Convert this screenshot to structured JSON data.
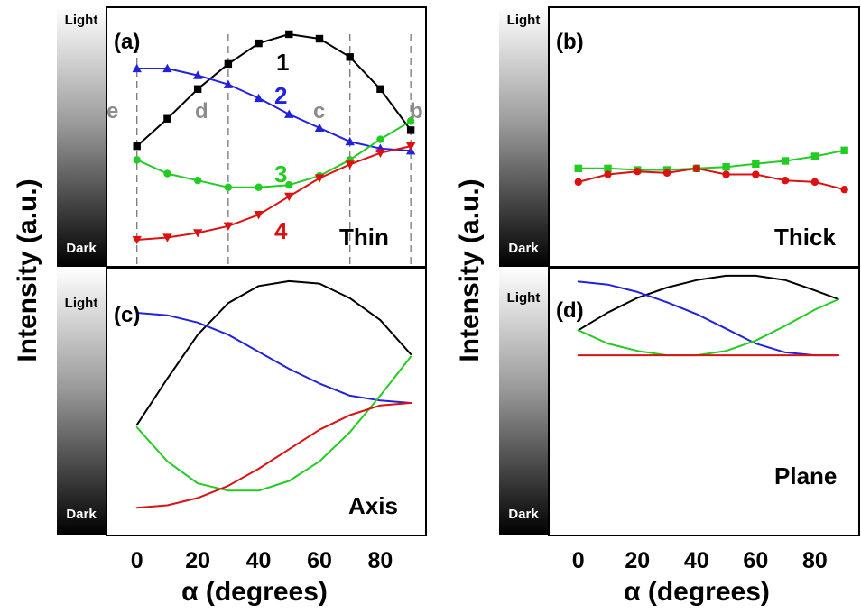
{
  "figure": {
    "y_axis_label": "Intensity (a.u.)",
    "x_axis_label": "α (degrees)",
    "scale_light": "Light",
    "scale_dark": "Dark",
    "x_ticks": [
      "0",
      "20",
      "40",
      "60",
      "80"
    ]
  },
  "colors": {
    "curve1": "#000000",
    "curve2": "#2222dd",
    "curve3": "#22cc22",
    "curve4": "#dd1111",
    "guide": "#777777",
    "guide_label": "#8c8c8c"
  },
  "chart_data": [
    {
      "panel_label": "(a)",
      "name": "Thin",
      "type": "line",
      "markers": true,
      "xlim": [
        -10,
        95
      ],
      "ylim": [
        0,
        1
      ],
      "vlines": [
        {
          "x": 0,
          "label": "e"
        },
        {
          "x": 30,
          "label": "d"
        },
        {
          "x": 70,
          "label": "c"
        },
        {
          "x": 90,
          "label": "b"
        }
      ],
      "series": [
        {
          "name": "1",
          "color": "#000000",
          "marker": "square",
          "x": [
            0,
            10,
            20,
            30,
            40,
            50,
            60,
            70,
            80,
            90
          ],
          "y": [
            0.46,
            0.58,
            0.71,
            0.82,
            0.91,
            0.95,
            0.93,
            0.85,
            0.71,
            0.53
          ]
        },
        {
          "name": "2",
          "color": "#2222dd",
          "marker": "triangle-up",
          "x": [
            0,
            10,
            20,
            30,
            40,
            50,
            60,
            70,
            80,
            90
          ],
          "y": [
            0.8,
            0.8,
            0.77,
            0.73,
            0.67,
            0.6,
            0.54,
            0.48,
            0.45,
            0.44
          ]
        },
        {
          "name": "3",
          "color": "#22cc22",
          "marker": "circle",
          "x": [
            0,
            10,
            20,
            30,
            40,
            50,
            60,
            70,
            80,
            90
          ],
          "y": [
            0.4,
            0.34,
            0.31,
            0.28,
            0.28,
            0.29,
            0.33,
            0.4,
            0.49,
            0.57
          ]
        },
        {
          "name": "4",
          "color": "#dd1111",
          "marker": "triangle-down",
          "x": [
            0,
            10,
            20,
            30,
            40,
            50,
            60,
            70,
            80,
            90
          ],
          "y": [
            0.05,
            0.06,
            0.08,
            0.11,
            0.16,
            0.24,
            0.32,
            0.38,
            0.43,
            0.46
          ]
        }
      ]
    },
    {
      "panel_label": "(b)",
      "name": "Thick",
      "type": "line",
      "markers": true,
      "xlim": [
        -10,
        95
      ],
      "ylim": [
        0,
        1
      ],
      "series": [
        {
          "name": "",
          "color": "#22cc22",
          "marker": "square",
          "x": [
            0,
            10,
            20,
            30,
            40,
            50,
            60,
            70,
            80,
            90
          ],
          "y": [
            0.55,
            0.55,
            0.54,
            0.54,
            0.55,
            0.56,
            0.58,
            0.6,
            0.63,
            0.67
          ]
        },
        {
          "name": "",
          "color": "#dd1111",
          "marker": "circle",
          "x": [
            0,
            10,
            20,
            30,
            40,
            50,
            60,
            70,
            80,
            90
          ],
          "y": [
            0.46,
            0.51,
            0.53,
            0.52,
            0.55,
            0.51,
            0.51,
            0.47,
            0.46,
            0.41
          ]
        }
      ]
    },
    {
      "panel_label": "(c)",
      "name": "Axis",
      "type": "line",
      "markers": false,
      "xlim": [
        -10,
        95
      ],
      "ylim": [
        0,
        1
      ],
      "series": [
        {
          "name": "",
          "color": "#000000",
          "x": [
            0,
            10,
            20,
            30,
            40,
            50,
            60,
            70,
            80,
            90
          ],
          "y": [
            0.41,
            0.6,
            0.78,
            0.91,
            0.98,
            1.0,
            0.99,
            0.93,
            0.84,
            0.7
          ]
        },
        {
          "name": "",
          "color": "#2222dd",
          "x": [
            0,
            10,
            20,
            30,
            40,
            50,
            60,
            70,
            80,
            90
          ],
          "y": [
            0.87,
            0.86,
            0.83,
            0.78,
            0.71,
            0.64,
            0.58,
            0.53,
            0.51,
            0.5
          ]
        },
        {
          "name": "",
          "color": "#22cc22",
          "x": [
            0,
            10,
            20,
            30,
            40,
            50,
            60,
            70,
            80,
            90
          ],
          "y": [
            0.4,
            0.26,
            0.17,
            0.14,
            0.14,
            0.18,
            0.26,
            0.38,
            0.53,
            0.69
          ]
        },
        {
          "name": "",
          "color": "#dd1111",
          "x": [
            0,
            10,
            20,
            30,
            40,
            50,
            60,
            70,
            80,
            90
          ],
          "y": [
            0.07,
            0.08,
            0.11,
            0.16,
            0.23,
            0.31,
            0.39,
            0.45,
            0.49,
            0.5
          ]
        }
      ]
    },
    {
      "panel_label": "(d)",
      "name": "Plane",
      "type": "line",
      "markers": false,
      "xlim": [
        -10,
        95
      ],
      "ylim": [
        0,
        1
      ],
      "series": [
        {
          "name": "",
          "color": "#000000",
          "x": [
            0,
            10,
            20,
            30,
            40,
            50,
            60,
            70,
            80,
            88
          ],
          "y": [
            0.63,
            0.75,
            0.85,
            0.92,
            0.97,
            1.0,
            1.0,
            0.97,
            0.9,
            0.84
          ]
        },
        {
          "name": "",
          "color": "#2222dd",
          "x": [
            0,
            10,
            20,
            30,
            40,
            50,
            60,
            70,
            80,
            88
          ],
          "y": [
            0.96,
            0.94,
            0.89,
            0.82,
            0.74,
            0.64,
            0.54,
            0.48,
            0.46,
            0.46
          ]
        },
        {
          "name": "",
          "color": "#22cc22",
          "x": [
            0,
            10,
            20,
            30,
            40,
            50,
            60,
            70,
            80,
            88
          ],
          "y": [
            0.63,
            0.54,
            0.49,
            0.46,
            0.46,
            0.49,
            0.56,
            0.66,
            0.77,
            0.84
          ]
        },
        {
          "name": "",
          "color": "#dd1111",
          "x": [
            0,
            88
          ],
          "y": [
            0.46,
            0.46
          ]
        }
      ]
    }
  ]
}
